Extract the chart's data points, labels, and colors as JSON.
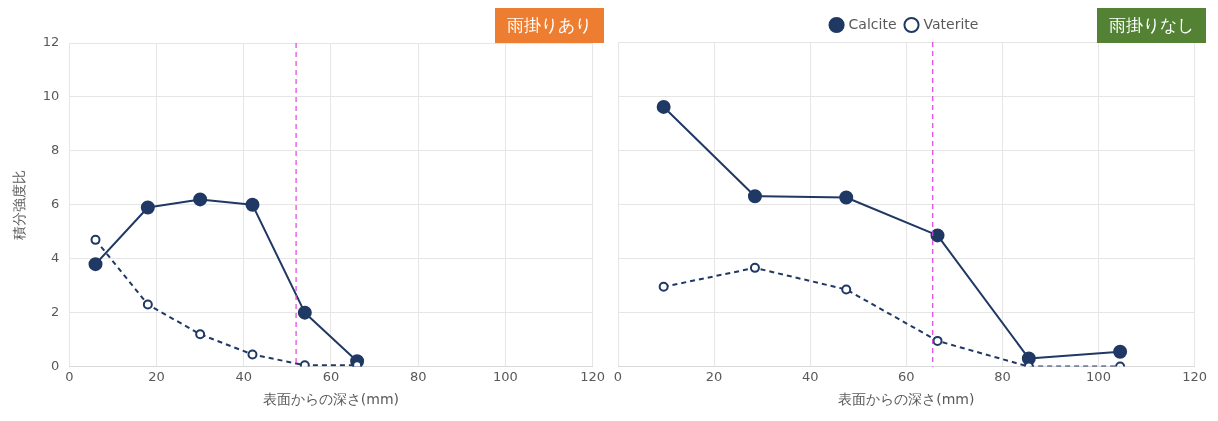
{
  "chart_data": [
    {
      "type": "line",
      "xlabel": "表面からの深さ(mm)",
      "ylabel": "積分強度比",
      "annotations": [
        "雨掛りあり"
      ],
      "xlim": [
        0,
        120
      ],
      "xticks": [
        0,
        20,
        40,
        60,
        80,
        100,
        120
      ],
      "ylim": [
        0,
        12
      ],
      "yticks": [
        0,
        2,
        4,
        6,
        8,
        10,
        12
      ],
      "grid": true,
      "legend": false,
      "marker": "circle",
      "x": [
        6,
        18,
        30,
        42,
        54,
        66
      ],
      "series": [
        {
          "color": "#1f3864",
          "line_style": "solid",
          "values": [
            3.8,
            5.9,
            6.2,
            6.0,
            2.0,
            0.2
          ]
        },
        {
          "color": "#1f3864",
          "line_style": "dashed",
          "values": [
            4.7,
            2.3,
            1.2,
            0.45,
            0.05,
            0.05
          ]
        }
      ],
      "ref_lines": [
        {
          "axis": "x",
          "value": 52,
          "color": "#e040e0",
          "line_style": "dashed"
        }
      ]
    },
    {
      "type": "line",
      "xlabel": "表面からの深さ(mm)",
      "annotations": [
        "雨掛りなし"
      ],
      "xlim": [
        0,
        120
      ],
      "xticks": [
        0,
        20,
        40,
        60,
        80,
        100,
        120
      ],
      "ylim": [
        0,
        12
      ],
      "yticks": [
        0,
        2,
        4,
        6,
        8,
        10,
        12
      ],
      "tick_labels": "x",
      "grid": true,
      "legend": "top",
      "marker": "circle",
      "x": [
        9.5,
        28.5,
        47.5,
        66.5,
        85.5,
        104.5
      ],
      "series": [
        {
          "name": "Calcite",
          "color": "#1f3864",
          "line_style": "solid",
          "values": [
            9.6,
            6.3,
            6.25,
            4.85,
            0.3,
            0.55
          ]
        },
        {
          "name": "Vaterite",
          "color": "#1f3864",
          "line_style": "dashed",
          "values": [
            2.95,
            3.65,
            2.85,
            0.95,
            0,
            0
          ]
        }
      ],
      "ref_lines": [
        {
          "axis": "x",
          "value": 65.5,
          "color": "#e040e0",
          "line_style": "dashed"
        }
      ]
    }
  ]
}
